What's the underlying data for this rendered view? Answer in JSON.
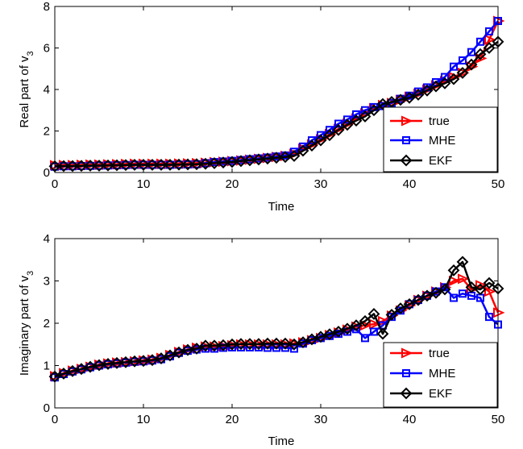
{
  "chart_data": [
    {
      "type": "line",
      "xlabel": "Time",
      "ylabel": "Real part of v",
      "ylabel_subscript": "3",
      "xlim": [
        0,
        50
      ],
      "ylim": [
        0,
        8
      ],
      "xticks": [
        0,
        10,
        20,
        30,
        40,
        50
      ],
      "yticks": [
        0,
        2,
        4,
        6,
        8
      ],
      "legend": {
        "position": "bottom-right",
        "entries": [
          "true",
          "MHE",
          "EKF"
        ]
      },
      "grid": false,
      "x": [
        0,
        1,
        2,
        3,
        4,
        5,
        6,
        7,
        8,
        9,
        10,
        11,
        12,
        13,
        14,
        15,
        16,
        17,
        18,
        19,
        20,
        21,
        22,
        23,
        24,
        25,
        26,
        27,
        28,
        29,
        30,
        31,
        32,
        33,
        34,
        35,
        36,
        37,
        38,
        39,
        40,
        41,
        42,
        43,
        44,
        45,
        46,
        47,
        48,
        49,
        50
      ],
      "series": [
        {
          "name": "true",
          "color": "#ff0000",
          "marker": "triangle-right",
          "values": [
            0.35,
            0.36,
            0.36,
            0.37,
            0.38,
            0.38,
            0.39,
            0.4,
            0.41,
            0.42,
            0.42,
            0.42,
            0.42,
            0.42,
            0.43,
            0.44,
            0.45,
            0.47,
            0.5,
            0.52,
            0.55,
            0.58,
            0.62,
            0.66,
            0.7,
            0.75,
            0.8,
            0.9,
            1.15,
            1.35,
            1.6,
            1.85,
            2.1,
            2.35,
            2.6,
            2.85,
            3.1,
            3.25,
            3.35,
            3.5,
            3.65,
            3.8,
            4.0,
            4.2,
            4.4,
            4.6,
            4.8,
            5.1,
            5.5,
            6.4,
            7.3
          ]
        },
        {
          "name": "MHE",
          "color": "#0000ff",
          "marker": "square",
          "values": [
            0.28,
            0.3,
            0.3,
            0.31,
            0.32,
            0.33,
            0.34,
            0.35,
            0.36,
            0.37,
            0.37,
            0.37,
            0.37,
            0.37,
            0.38,
            0.39,
            0.4,
            0.45,
            0.5,
            0.53,
            0.56,
            0.6,
            0.64,
            0.68,
            0.72,
            0.77,
            0.82,
            1.0,
            1.25,
            1.55,
            1.8,
            2.05,
            2.35,
            2.55,
            2.8,
            3.0,
            3.15,
            3.2,
            3.35,
            3.55,
            3.7,
            3.9,
            4.1,
            4.35,
            4.6,
            5.1,
            5.4,
            5.8,
            6.3,
            6.8,
            7.3
          ]
        },
        {
          "name": "EKF",
          "color": "#000000",
          "marker": "diamond",
          "values": [
            0.3,
            0.31,
            0.31,
            0.32,
            0.33,
            0.33,
            0.34,
            0.35,
            0.36,
            0.37,
            0.37,
            0.37,
            0.37,
            0.37,
            0.38,
            0.39,
            0.4,
            0.42,
            0.45,
            0.48,
            0.51,
            0.55,
            0.59,
            0.63,
            0.67,
            0.71,
            0.75,
            0.8,
            1.05,
            1.3,
            1.55,
            1.8,
            2.05,
            2.3,
            2.5,
            2.7,
            3.0,
            3.3,
            3.4,
            3.5,
            3.6,
            3.75,
            3.95,
            4.15,
            4.3,
            4.5,
            4.8,
            5.2,
            5.7,
            6.0,
            6.3
          ]
        }
      ]
    },
    {
      "type": "line",
      "xlabel": "Time",
      "ylabel": "Imaginary part of v",
      "ylabel_subscript": "3",
      "xlim": [
        0,
        50
      ],
      "ylim": [
        0,
        4
      ],
      "xticks": [
        0,
        10,
        20,
        30,
        40,
        50
      ],
      "yticks": [
        0,
        1,
        2,
        3,
        4
      ],
      "legend": {
        "position": "bottom-right",
        "entries": [
          "true",
          "MHE",
          "EKF"
        ]
      },
      "grid": false,
      "x": [
        0,
        1,
        2,
        3,
        4,
        5,
        6,
        7,
        8,
        9,
        10,
        11,
        12,
        13,
        14,
        15,
        16,
        17,
        18,
        19,
        20,
        21,
        22,
        23,
        24,
        25,
        26,
        27,
        28,
        29,
        30,
        31,
        32,
        33,
        34,
        35,
        36,
        37,
        38,
        39,
        40,
        41,
        42,
        43,
        44,
        45,
        46,
        47,
        48,
        49,
        50
      ],
      "series": [
        {
          "name": "true",
          "color": "#ff0000",
          "marker": "triangle-right",
          "values": [
            0.75,
            0.82,
            0.88,
            0.92,
            0.97,
            1.02,
            1.05,
            1.07,
            1.08,
            1.1,
            1.12,
            1.14,
            1.18,
            1.25,
            1.32,
            1.38,
            1.42,
            1.45,
            1.45,
            1.46,
            1.48,
            1.5,
            1.5,
            1.5,
            1.5,
            1.5,
            1.5,
            1.52,
            1.55,
            1.6,
            1.65,
            1.72,
            1.78,
            1.85,
            1.92,
            1.95,
            1.98,
            2.05,
            2.18,
            2.3,
            2.42,
            2.55,
            2.65,
            2.75,
            2.85,
            3.0,
            3.05,
            2.8,
            2.9,
            2.75,
            2.25
          ]
        },
        {
          "name": "MHE",
          "color": "#0000ff",
          "marker": "square",
          "values": [
            0.72,
            0.8,
            0.86,
            0.91,
            0.96,
            1.0,
            1.03,
            1.05,
            1.07,
            1.09,
            1.1,
            1.12,
            1.15,
            1.22,
            1.3,
            1.35,
            1.38,
            1.4,
            1.4,
            1.42,
            1.43,
            1.43,
            1.43,
            1.43,
            1.42,
            1.42,
            1.42,
            1.4,
            1.52,
            1.6,
            1.65,
            1.7,
            1.75,
            1.8,
            1.86,
            1.65,
            1.8,
            1.95,
            2.15,
            2.3,
            2.45,
            2.55,
            2.65,
            2.75,
            2.85,
            2.6,
            2.7,
            2.65,
            2.6,
            2.15,
            1.97
          ]
        },
        {
          "name": "EKF",
          "color": "#000000",
          "marker": "diamond",
          "values": [
            0.74,
            0.81,
            0.87,
            0.92,
            0.97,
            1.01,
            1.04,
            1.06,
            1.08,
            1.1,
            1.11,
            1.13,
            1.17,
            1.24,
            1.31,
            1.37,
            1.4,
            1.47,
            1.47,
            1.48,
            1.5,
            1.51,
            1.51,
            1.51,
            1.52,
            1.52,
            1.52,
            1.5,
            1.55,
            1.62,
            1.68,
            1.74,
            1.8,
            1.87,
            1.95,
            2.05,
            2.22,
            1.75,
            2.2,
            2.35,
            2.45,
            2.55,
            2.65,
            2.72,
            2.8,
            3.25,
            3.45,
            2.85,
            2.8,
            2.95,
            2.82
          ]
        }
      ]
    }
  ]
}
